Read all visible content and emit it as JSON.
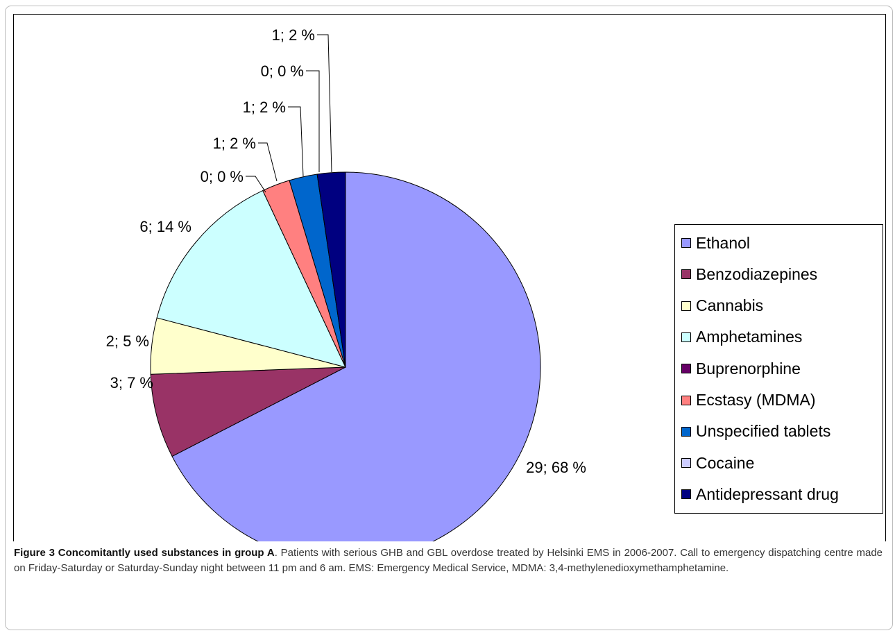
{
  "chart_data": {
    "type": "pie",
    "slices": [
      {
        "label": "Ethanol",
        "count": 29,
        "percent": 68,
        "data_label": "29; 68 %",
        "color": "#9999ff"
      },
      {
        "label": "Benzodiazepines",
        "count": 3,
        "percent": 7,
        "data_label": "3; 7 %",
        "color": "#993366"
      },
      {
        "label": "Cannabis",
        "count": 2,
        "percent": 5,
        "data_label": "2; 5 %",
        "color": "#ffffcc"
      },
      {
        "label": "Amphetamines",
        "count": 6,
        "percent": 14,
        "data_label": "6; 14 %",
        "color": "#ccffff"
      },
      {
        "label": "Buprenorphine",
        "count": 0,
        "percent": 0,
        "data_label": "0; 0 %",
        "color": "#660066"
      },
      {
        "label": "Ecstasy (MDMA)",
        "count": 1,
        "percent": 2,
        "data_label": "1; 2 %",
        "color": "#ff8080"
      },
      {
        "label": "Unspecified tablets",
        "count": 1,
        "percent": 2,
        "data_label": "1; 2 %",
        "color": "#0066cc"
      },
      {
        "label": "Cocaine",
        "count": 0,
        "percent": 0,
        "data_label": "0; 0 %",
        "color": "#ccccff"
      },
      {
        "label": "Antidepressant drug",
        "count": 1,
        "percent": 2,
        "data_label": "1; 2 %",
        "color": "#000080"
      }
    ],
    "legend_position": "right"
  },
  "caption": {
    "title": "Figure 3 Concomitantly used substances in group A",
    "text": ". Patients with serious GHB and GBL overdose treated by Helsinki EMS in 2006-2007. Call to emergency dispatching centre made on Friday-Saturday or Saturday-Sunday night between 11 pm and 6 am. EMS: Emergency Medical Service, MDMA: 3,4-methylenedioxymethamphetamine."
  }
}
